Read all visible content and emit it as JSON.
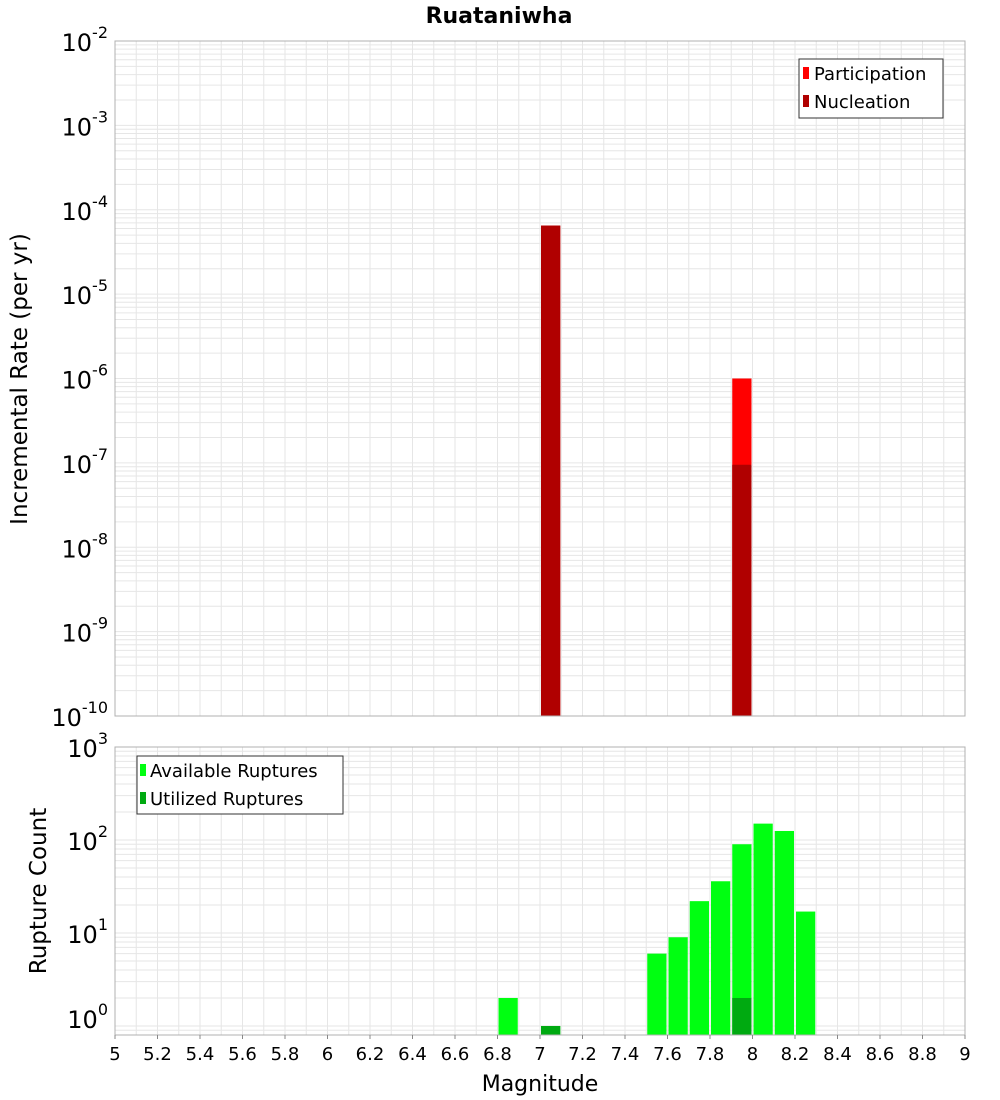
{
  "title": "Ruataniwha",
  "xaxis": {
    "label": "Magnitude",
    "range": [
      5,
      9
    ],
    "ticks": [
      5,
      5.2,
      5.4,
      5.6,
      5.8,
      6,
      6.2,
      6.4,
      6.6,
      6.8,
      7,
      7.2,
      7.4,
      7.6,
      7.8,
      8,
      8.2,
      8.4,
      8.6,
      8.8,
      9
    ],
    "tick_labels": [
      "5",
      "5.2",
      "5.4",
      "5.6",
      "5.8",
      "6",
      "6.2",
      "6.4",
      "6.6",
      "6.8",
      "7",
      "7.2",
      "7.4",
      "7.6",
      "7.8",
      "8",
      "8.2",
      "8.4",
      "8.6",
      "8.8",
      "9"
    ]
  },
  "colors": {
    "participation": "#ff0000",
    "nucleation": "#b00000",
    "available": "#00ff11",
    "utilized": "#00aa11",
    "grid": "#e6e6e6",
    "frame": "#b0b0b0"
  },
  "chart_data": [
    {
      "type": "bar",
      "scale": "log",
      "ylabel": "Incremental Rate (per yr)",
      "xlabel": "Magnitude",
      "ylim_exp": [
        -10,
        -2
      ],
      "ytick_labels": [
        {
          "base": "10",
          "exp": "-2"
        },
        {
          "base": "10",
          "exp": "-3"
        },
        {
          "base": "10",
          "exp": "-4"
        },
        {
          "base": "10",
          "exp": "-5"
        },
        {
          "base": "10",
          "exp": "-6"
        },
        {
          "base": "10",
          "exp": "-7"
        },
        {
          "base": "10",
          "exp": "-8"
        },
        {
          "base": "10",
          "exp": "-9"
        },
        {
          "base": "10",
          "exp": "-10"
        }
      ],
      "bin_width": 0.1,
      "legend": [
        "Participation",
        "Nucleation"
      ],
      "legend_position": "top-right",
      "series": [
        {
          "name": "Participation",
          "points": [
            {
              "x": 7.05,
              "y": 6.5e-05
            },
            {
              "x": 7.95,
              "y": 1e-06
            }
          ]
        },
        {
          "name": "Nucleation",
          "points": [
            {
              "x": 7.05,
              "y": 6.5e-05
            },
            {
              "x": 7.95,
              "y": 9.5e-08
            }
          ]
        }
      ]
    },
    {
      "type": "bar",
      "scale": "log",
      "ylabel": "Rupture Count",
      "xlabel": "Magnitude",
      "ylim": [
        0.8,
        1000
      ],
      "ytick_labels": [
        {
          "base": "10",
          "exp": "3"
        },
        {
          "base": "10",
          "exp": "2"
        },
        {
          "base": "10",
          "exp": "1"
        },
        {
          "base": "10",
          "exp": "0"
        }
      ],
      "bin_width": 0.1,
      "legend": [
        "Available Ruptures",
        "Utilized Ruptures"
      ],
      "legend_position": "top-left",
      "series": [
        {
          "name": "Available Ruptures",
          "points": [
            {
              "x": 6.85,
              "y": 2
            },
            {
              "x": 7.05,
              "y": 1
            },
            {
              "x": 7.55,
              "y": 6
            },
            {
              "x": 7.65,
              "y": 9
            },
            {
              "x": 7.75,
              "y": 22
            },
            {
              "x": 7.85,
              "y": 36
            },
            {
              "x": 7.95,
              "y": 90
            },
            {
              "x": 8.05,
              "y": 150
            },
            {
              "x": 8.15,
              "y": 125
            },
            {
              "x": 8.25,
              "y": 17
            }
          ]
        },
        {
          "name": "Utilized Ruptures",
          "points": [
            {
              "x": 7.05,
              "y": 1
            },
            {
              "x": 7.95,
              "y": 2
            }
          ]
        }
      ]
    }
  ]
}
